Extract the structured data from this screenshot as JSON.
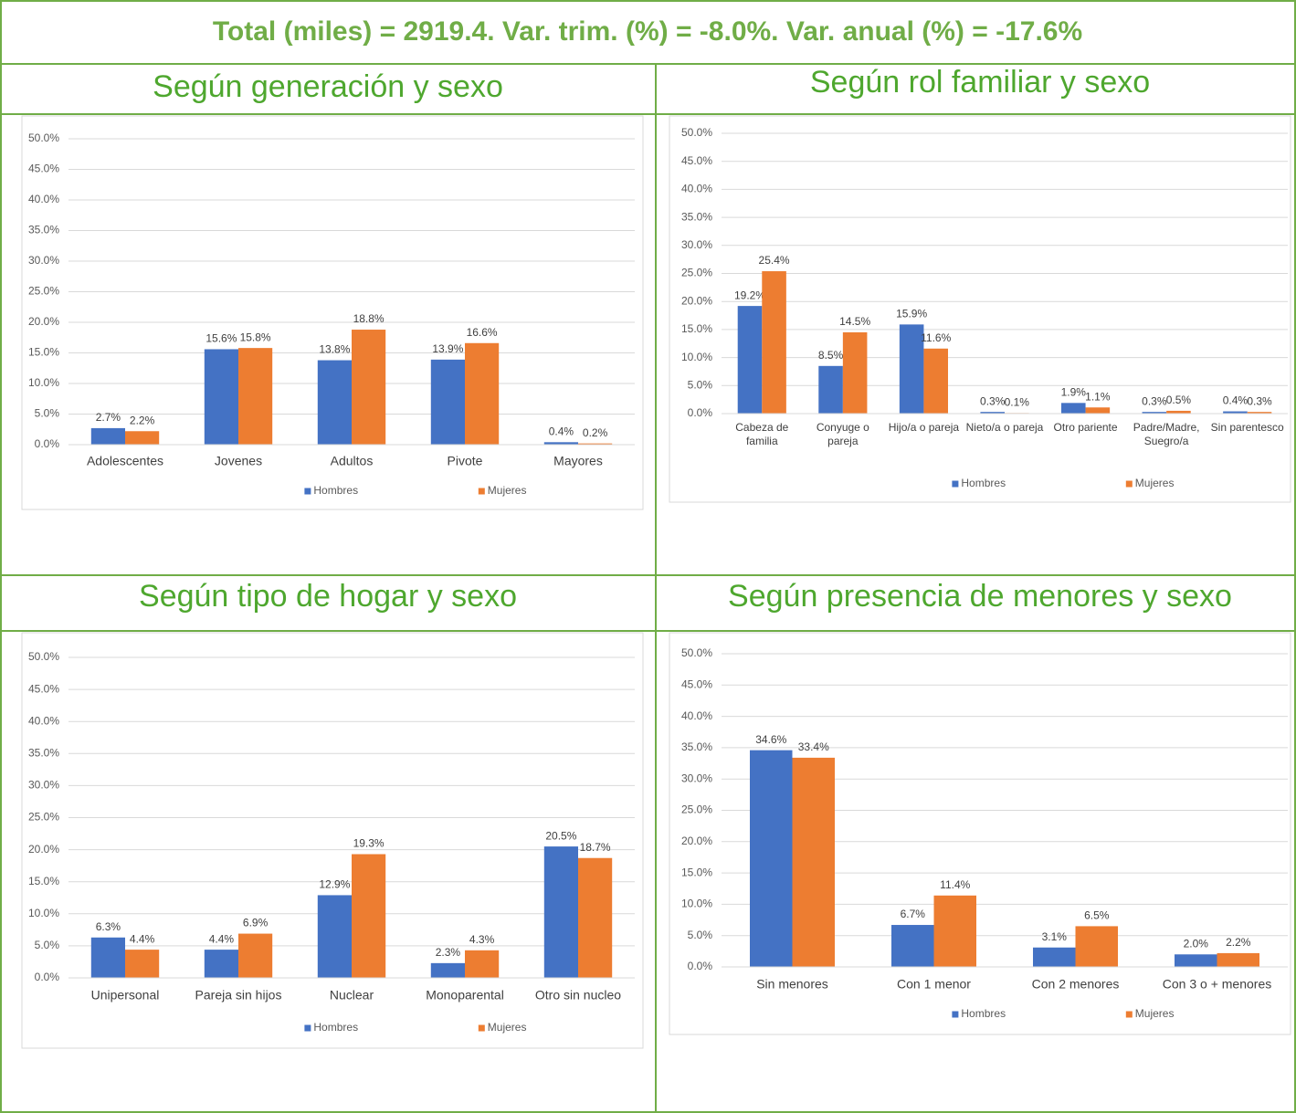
{
  "title": "Total (miles) = 2919.4. Var. trim. (%) = -8.0%. Var. anual (%) = -17.6%",
  "chart_data": [
    {
      "type": "bar",
      "title": "Según generación y sexo",
      "categories": [
        "Adolescentes",
        "Jovenes",
        "Adultos",
        "Pivote",
        "Mayores"
      ],
      "series": [
        {
          "name": "Hombres",
          "color": "#4472c4",
          "values": [
            2.7,
            15.6,
            13.8,
            13.9,
            0.4
          ],
          "value_labels": [
            "2.7%",
            "15.6%",
            "13.8%",
            "13.9%",
            "0.4%"
          ]
        },
        {
          "name": "Mujeres",
          "color": "#ed7d31",
          "values": [
            2.2,
            15.8,
            18.8,
            16.6,
            0.2
          ],
          "value_labels": [
            "2.2%",
            "15.8%",
            "18.8%",
            "16.6%",
            "0.2%"
          ]
        }
      ],
      "ylim": [
        0,
        50
      ],
      "yticks": [
        {
          "value": 0,
          "label": "0.0%"
        },
        {
          "value": 5,
          "label": "5.0%"
        },
        {
          "value": 10,
          "label": "10.0%"
        },
        {
          "value": 15,
          "label": "15.0%"
        },
        {
          "value": 20,
          "label": "20.0%"
        },
        {
          "value": 25,
          "label": "25.0%"
        },
        {
          "value": 30,
          "label": "30.0%"
        },
        {
          "value": 35,
          "label": "35.0%"
        },
        {
          "value": 40,
          "label": "40.0%"
        },
        {
          "value": 45,
          "label": "45.0%"
        },
        {
          "value": 50,
          "label": "50.0%"
        }
      ],
      "grid": true,
      "legend": "bottom"
    },
    {
      "type": "bar",
      "title": "Según rol familiar y sexo",
      "categories": [
        "Cabeza de familia",
        "Conyuge o pareja",
        "Hijo/a o pareja",
        "Nieto/a o pareja",
        "Otro pariente",
        "Padre/Madre, Suegro/a",
        "Sin parentesco"
      ],
      "series": [
        {
          "name": "Hombres",
          "color": "#4472c4",
          "values": [
            19.2,
            8.5,
            15.9,
            0.3,
            1.9,
            0.3,
            0.4
          ],
          "value_labels": [
            "19.2%",
            "8.5%",
            "15.9%",
            "0.3%",
            "1.9%",
            "0.3%",
            "0.4%"
          ]
        },
        {
          "name": "Mujeres",
          "color": "#ed7d31",
          "values": [
            25.4,
            14.5,
            11.6,
            0.1,
            1.1,
            0.5,
            0.3
          ],
          "value_labels": [
            "25.4%",
            "14.5%",
            "11.6%",
            "0.1%",
            "1.1%",
            "0.5%",
            "0.3%"
          ]
        }
      ],
      "ylim": [
        0,
        50
      ],
      "yticks": [
        {
          "value": 0,
          "label": "0.0%"
        },
        {
          "value": 5,
          "label": "5.0%"
        },
        {
          "value": 10,
          "label": "10.0%"
        },
        {
          "value": 15,
          "label": "15.0%"
        },
        {
          "value": 20,
          "label": "20.0%"
        },
        {
          "value": 25,
          "label": "25.0%"
        },
        {
          "value": 30,
          "label": "30.0%"
        },
        {
          "value": 35,
          "label": "35.0%"
        },
        {
          "value": 40,
          "label": "40.0%"
        },
        {
          "value": 45,
          "label": "45.0%"
        },
        {
          "value": 50,
          "label": "50.0%"
        }
      ],
      "grid": true,
      "legend": "bottom"
    },
    {
      "type": "bar",
      "title": "Según tipo de hogar y sexo",
      "categories": [
        "Unipersonal",
        "Pareja sin hijos",
        "Nuclear",
        "Monoparental",
        "Otro sin nucleo"
      ],
      "series": [
        {
          "name": "Hombres",
          "color": "#4472c4",
          "values": [
            6.3,
            4.4,
            12.9,
            2.3,
            20.5
          ],
          "value_labels": [
            "6.3%",
            "4.4%",
            "12.9%",
            "2.3%",
            "20.5%"
          ]
        },
        {
          "name": "Mujeres",
          "color": "#ed7d31",
          "values": [
            4.4,
            6.9,
            19.3,
            4.3,
            18.7
          ],
          "value_labels": [
            "4.4%",
            "6.9%",
            "19.3%",
            "4.3%",
            "18.7%"
          ]
        }
      ],
      "ylim": [
        0,
        50
      ],
      "yticks": [
        {
          "value": 0,
          "label": "0.0%"
        },
        {
          "value": 5,
          "label": "5.0%"
        },
        {
          "value": 10,
          "label": "10.0%"
        },
        {
          "value": 15,
          "label": "15.0%"
        },
        {
          "value": 20,
          "label": "20.0%"
        },
        {
          "value": 25,
          "label": "25.0%"
        },
        {
          "value": 30,
          "label": "30.0%"
        },
        {
          "value": 35,
          "label": "35.0%"
        },
        {
          "value": 40,
          "label": "40.0%"
        },
        {
          "value": 45,
          "label": "45.0%"
        },
        {
          "value": 50,
          "label": "50.0%"
        }
      ],
      "grid": true,
      "legend": "bottom"
    },
    {
      "type": "bar",
      "title": "Según presencia de menores y sexo",
      "categories": [
        "Sin menores",
        "Con 1 menor",
        "Con 2 menores",
        "Con 3 o + menores"
      ],
      "series": [
        {
          "name": "Hombres",
          "color": "#4472c4",
          "values": [
            34.6,
            6.7,
            3.1,
            2.0
          ],
          "value_labels": [
            "34.6%",
            "6.7%",
            "3.1%",
            "2.0%"
          ]
        },
        {
          "name": "Mujeres",
          "color": "#ed7d31",
          "values": [
            33.4,
            11.4,
            6.5,
            2.2
          ],
          "value_labels": [
            "33.4%",
            "11.4%",
            "6.5%",
            "2.2%"
          ]
        }
      ],
      "ylim": [
        0,
        50
      ],
      "yticks": [
        {
          "value": 0,
          "label": "0.0%"
        },
        {
          "value": 5,
          "label": "5.0%"
        },
        {
          "value": 10,
          "label": "10.0%"
        },
        {
          "value": 15,
          "label": "15.0%"
        },
        {
          "value": 20,
          "label": "20.0%"
        },
        {
          "value": 25,
          "label": "25.0%"
        },
        {
          "value": 30,
          "label": "30.0%"
        },
        {
          "value": 35,
          "label": "35.0%"
        },
        {
          "value": 40,
          "label": "40.0%"
        },
        {
          "value": 45,
          "label": "45.0%"
        },
        {
          "value": 50,
          "label": "50.0%"
        }
      ],
      "grid": true,
      "legend": "bottom"
    }
  ]
}
